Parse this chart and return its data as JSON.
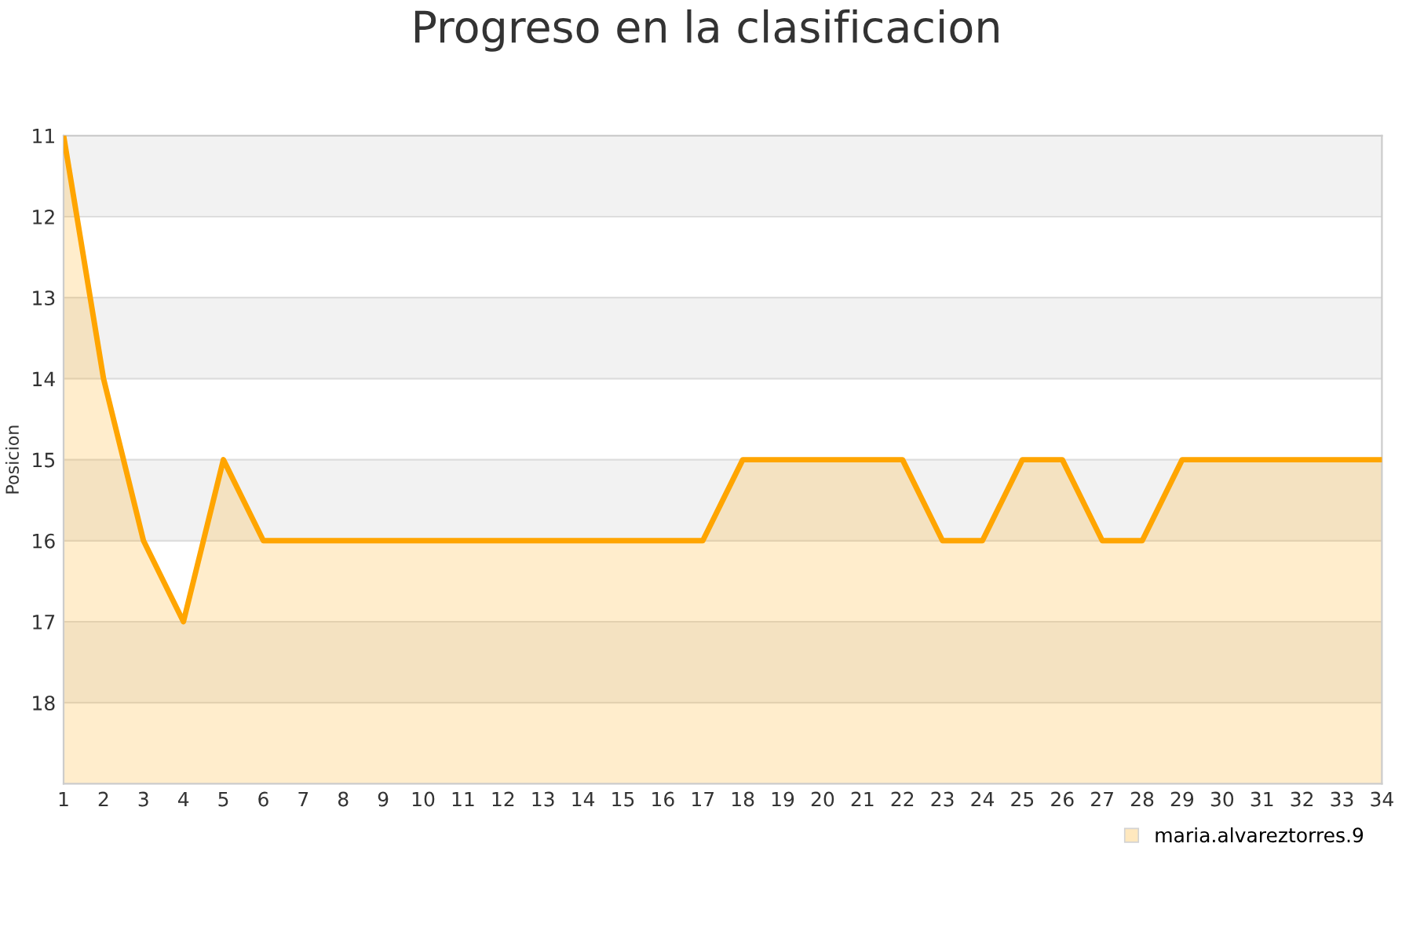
{
  "chart_data": {
    "type": "area",
    "title": "Progreso en la clasificacion",
    "ylabel": "Posicion",
    "x": [
      1,
      2,
      3,
      4,
      5,
      6,
      7,
      8,
      9,
      10,
      11,
      12,
      13,
      14,
      15,
      16,
      17,
      18,
      19,
      20,
      21,
      22,
      23,
      24,
      25,
      26,
      27,
      28,
      29,
      30,
      31,
      32,
      33,
      34
    ],
    "series": [
      {
        "name": "maria.alvareztorres.9",
        "color": "#ffa500",
        "values": [
          11,
          14,
          16,
          17,
          15,
          16,
          16,
          16,
          16,
          16,
          16,
          16,
          16,
          16,
          16,
          16,
          16,
          15,
          15,
          15,
          15,
          15,
          16,
          16,
          15,
          15,
          16,
          16,
          15,
          15,
          15,
          15,
          15,
          15
        ]
      }
    ],
    "xlim": [
      1,
      34
    ],
    "xticks": [
      1,
      2,
      3,
      4,
      5,
      6,
      7,
      8,
      9,
      10,
      11,
      12,
      13,
      14,
      15,
      16,
      17,
      18,
      19,
      20,
      21,
      22,
      23,
      24,
      25,
      26,
      27,
      28,
      29,
      30,
      31,
      32,
      33,
      34
    ],
    "ylim": [
      19,
      11
    ],
    "yticks": [
      11,
      12,
      13,
      14,
      15,
      16,
      17,
      18
    ],
    "bands": [
      {
        "axis": "y",
        "from": 11,
        "to": 12,
        "color": "#f2f2f2"
      },
      {
        "axis": "y",
        "from": 13,
        "to": 14,
        "color": "#f2f2f2"
      },
      {
        "axis": "y",
        "from": 15,
        "to": 16,
        "color": "#f2f2f2"
      },
      {
        "axis": "y",
        "from": 17,
        "to": 18,
        "color": "#f2f2f2"
      }
    ],
    "grid": "y",
    "legend": "bottom right",
    "marker": "none",
    "line_style": "solid"
  }
}
